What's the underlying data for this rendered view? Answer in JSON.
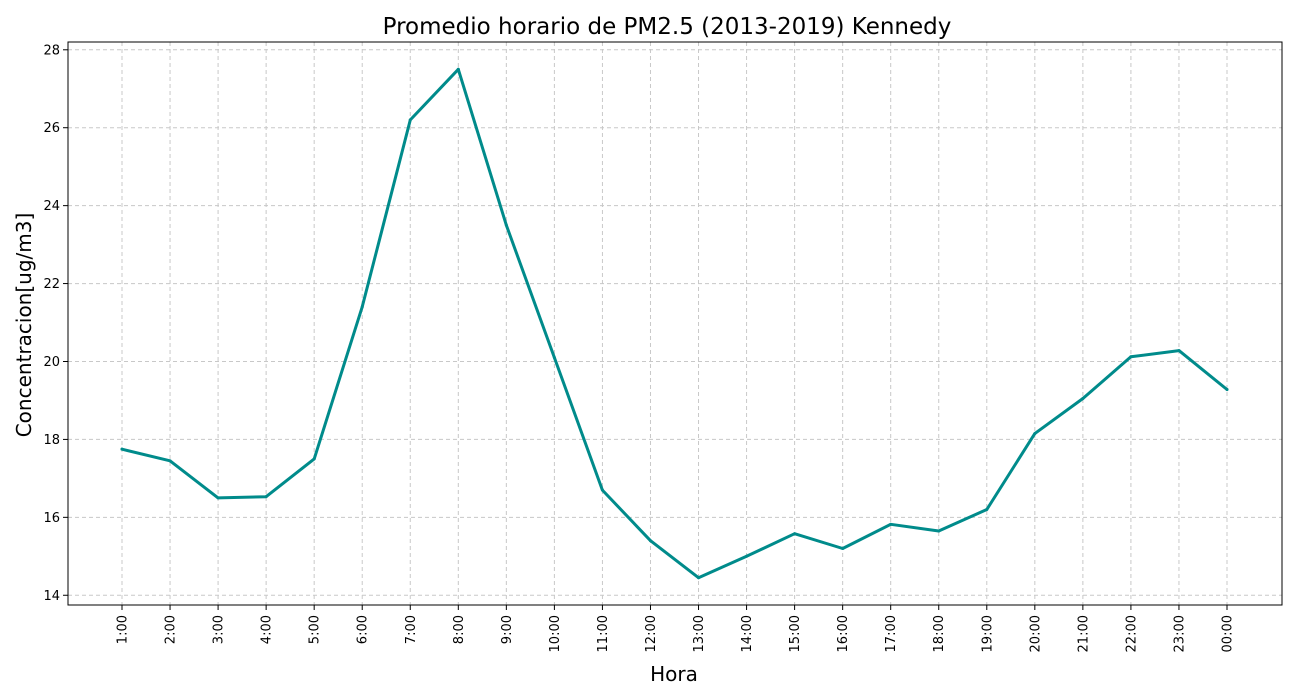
{
  "chart_data": {
    "type": "line",
    "title": "Promedio horario de PM2.5 (2013-2019) Kennedy",
    "xlabel": "Hora",
    "ylabel": "Concentracion[ug/m3]",
    "categories": [
      "1:00",
      "2:00",
      "3:00",
      "4:00",
      "5:00",
      "6:00",
      "7:00",
      "8:00",
      "9:00",
      "10:00",
      "11:00",
      "12:00",
      "13:00",
      "14:00",
      "15:00",
      "16:00",
      "17:00",
      "18:00",
      "19:00",
      "20:00",
      "21:00",
      "22:00",
      "23:00",
      "00:00"
    ],
    "series": [
      {
        "values": [
          17.75,
          17.45,
          16.5,
          16.53,
          17.5,
          21.4,
          26.2,
          27.5,
          23.5,
          20.1,
          16.7,
          15.4,
          14.45,
          15.0,
          15.58,
          15.2,
          15.82,
          15.65,
          16.2,
          18.15,
          19.05,
          20.12,
          20.28,
          19.28
        ]
      }
    ],
    "ylim": [
      13.75,
      28.2
    ],
    "yticks": [
      14,
      16,
      18,
      20,
      22,
      24,
      26,
      28
    ],
    "grid": true,
    "colors": {
      "line": "#008b8b",
      "grid": "#c8c8c8",
      "axis": "#000000"
    }
  }
}
